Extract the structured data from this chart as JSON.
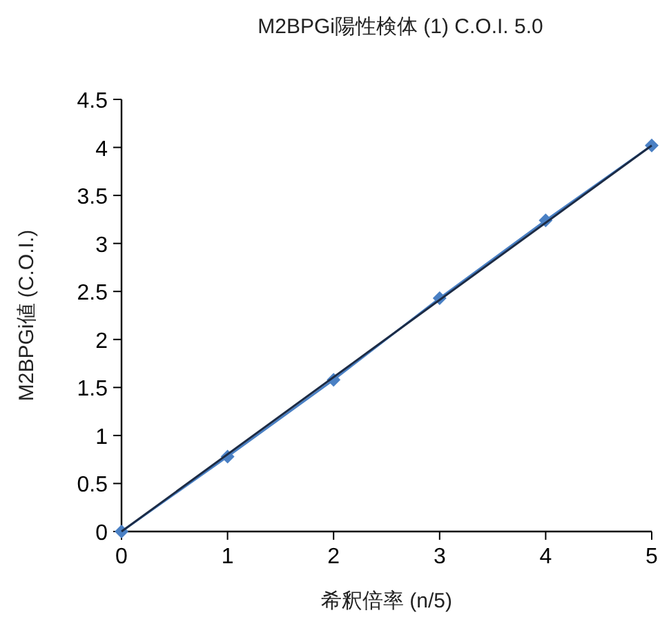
{
  "chart_data": {
    "type": "line",
    "title": "M2BPGi陽性検体 (1) C.O.I. 5.0",
    "xlabel": "希釈倍率 (n/5)",
    "ylabel": "M2BPGi値 (C.O.I.)",
    "x": [
      0,
      1,
      2,
      3,
      4,
      5
    ],
    "series": [
      {
        "color": "#4a80c4",
        "values": [
          0,
          0.78,
          1.58,
          2.43,
          3.24,
          4.02
        ],
        "marker": "diamond"
      },
      {
        "type": "line",
        "color": "#1c2b45",
        "x": [
          0,
          5
        ],
        "values": [
          0,
          4.02
        ],
        "marker": "none"
      }
    ],
    "xlim": [
      0,
      5
    ],
    "xticks": [
      0,
      1,
      2,
      3,
      4,
      5
    ],
    "ylim": [
      0,
      4.5
    ],
    "yticks": [
      0,
      0.5,
      1,
      1.5,
      2,
      2.5,
      3,
      3.5,
      4,
      4.5
    ],
    "grid": false
  }
}
